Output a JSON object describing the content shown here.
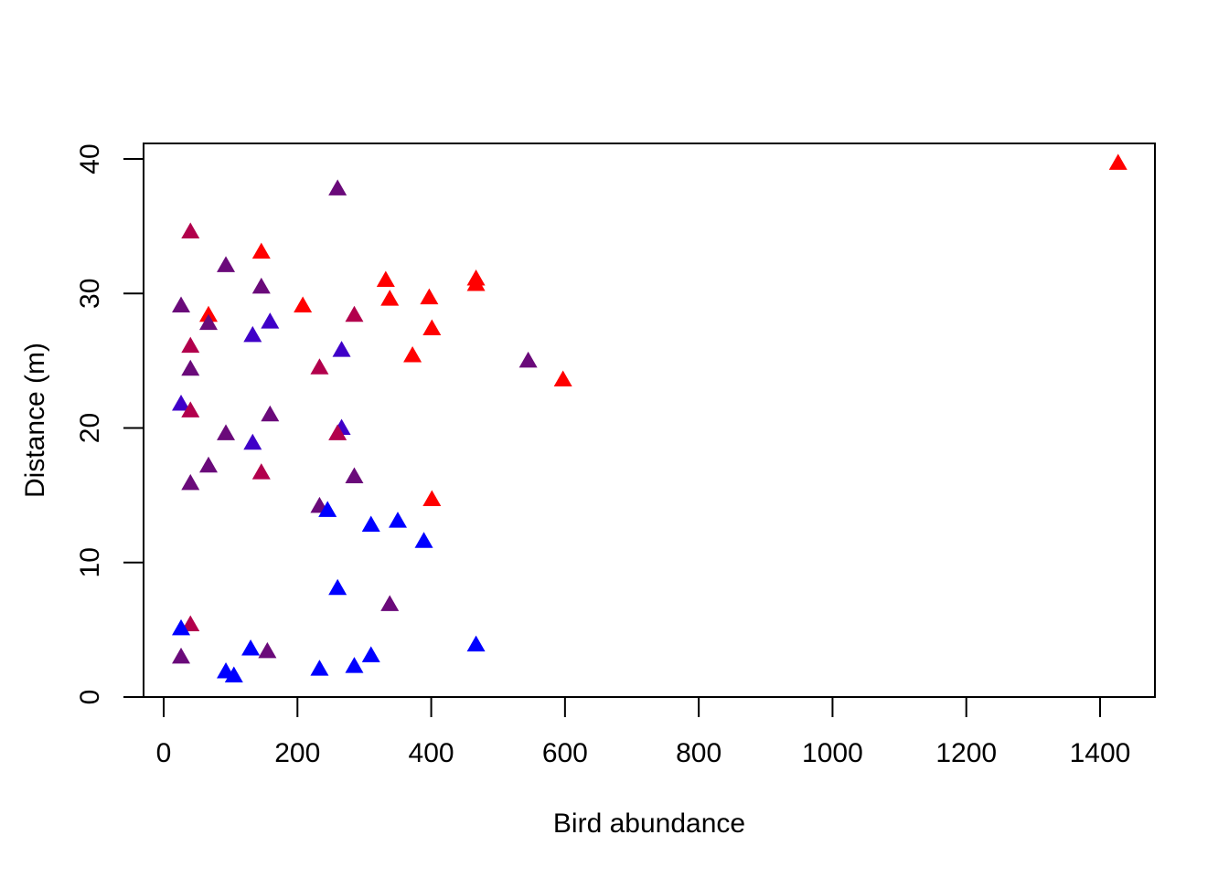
{
  "chart_data": {
    "type": "scatter",
    "title": "",
    "xlabel": "Bird abundance",
    "ylabel": "Distance (m)",
    "xlim": [
      -30,
      1480
    ],
    "ylim": [
      -1,
      40.2
    ],
    "x_ticks": [
      0,
      200,
      400,
      600,
      800,
      1000,
      1200,
      1400
    ],
    "x_tick_labels": [
      "0",
      "200",
      "400",
      "600",
      "800",
      "1000",
      "1200",
      "1400"
    ],
    "y_ticks": [
      0,
      10,
      20,
      30,
      40
    ],
    "y_tick_labels": [
      "0",
      "10",
      "20",
      "30",
      "40"
    ],
    "marker": "filled-triangle",
    "grid": false,
    "legend": "none",
    "colors": {
      "red": "#ff0000",
      "crimson": "#b2004c",
      "purple": "#6a0a7a",
      "indigo": "#3f00c8",
      "blue": "#0000ff"
    },
    "points": [
      {
        "x": 1427,
        "y": 39.7,
        "color": "red"
      },
      {
        "x": 260,
        "y": 37.8,
        "color": "purple"
      },
      {
        "x": 40,
        "y": 34.6,
        "color": "crimson"
      },
      {
        "x": 146,
        "y": 33.1,
        "color": "red"
      },
      {
        "x": 93,
        "y": 32.1,
        "color": "purple"
      },
      {
        "x": 332,
        "y": 31.0,
        "color": "red"
      },
      {
        "x": 467,
        "y": 31.1,
        "color": "red"
      },
      {
        "x": 467,
        "y": 30.7,
        "color": "red"
      },
      {
        "x": 146,
        "y": 30.5,
        "color": "purple"
      },
      {
        "x": 397,
        "y": 29.7,
        "color": "red"
      },
      {
        "x": 338,
        "y": 29.6,
        "color": "red"
      },
      {
        "x": 26,
        "y": 29.1,
        "color": "purple"
      },
      {
        "x": 208,
        "y": 29.1,
        "color": "red"
      },
      {
        "x": 285,
        "y": 28.4,
        "color": "crimson"
      },
      {
        "x": 67,
        "y": 28.4,
        "color": "red"
      },
      {
        "x": 67,
        "y": 27.8,
        "color": "purple"
      },
      {
        "x": 159,
        "y": 27.9,
        "color": "indigo"
      },
      {
        "x": 401,
        "y": 27.4,
        "color": "red"
      },
      {
        "x": 133,
        "y": 26.9,
        "color": "indigo"
      },
      {
        "x": 40,
        "y": 26.1,
        "color": "crimson"
      },
      {
        "x": 266,
        "y": 25.8,
        "color": "indigo"
      },
      {
        "x": 372,
        "y": 25.4,
        "color": "red"
      },
      {
        "x": 545,
        "y": 25.0,
        "color": "purple"
      },
      {
        "x": 40,
        "y": 24.4,
        "color": "purple"
      },
      {
        "x": 233,
        "y": 24.5,
        "color": "crimson"
      },
      {
        "x": 597,
        "y": 23.6,
        "color": "red"
      },
      {
        "x": 26,
        "y": 21.8,
        "color": "indigo"
      },
      {
        "x": 40,
        "y": 21.3,
        "color": "crimson"
      },
      {
        "x": 159,
        "y": 21.0,
        "color": "purple"
      },
      {
        "x": 266,
        "y": 20.0,
        "color": "indigo"
      },
      {
        "x": 93,
        "y": 19.6,
        "color": "purple"
      },
      {
        "x": 260,
        "y": 19.6,
        "color": "crimson"
      },
      {
        "x": 133,
        "y": 18.9,
        "color": "indigo"
      },
      {
        "x": 67,
        "y": 17.2,
        "color": "purple"
      },
      {
        "x": 146,
        "y": 16.7,
        "color": "crimson"
      },
      {
        "x": 285,
        "y": 16.4,
        "color": "purple"
      },
      {
        "x": 40,
        "y": 15.9,
        "color": "purple"
      },
      {
        "x": 401,
        "y": 14.7,
        "color": "red"
      },
      {
        "x": 233,
        "y": 14.2,
        "color": "purple"
      },
      {
        "x": 245,
        "y": 13.9,
        "color": "blue"
      },
      {
        "x": 350,
        "y": 13.1,
        "color": "blue"
      },
      {
        "x": 310,
        "y": 12.8,
        "color": "blue"
      },
      {
        "x": 389,
        "y": 11.6,
        "color": "blue"
      },
      {
        "x": 260,
        "y": 8.1,
        "color": "blue"
      },
      {
        "x": 338,
        "y": 6.9,
        "color": "purple"
      },
      {
        "x": 40,
        "y": 5.4,
        "color": "crimson"
      },
      {
        "x": 26,
        "y": 5.1,
        "color": "blue"
      },
      {
        "x": 467,
        "y": 3.9,
        "color": "blue"
      },
      {
        "x": 130,
        "y": 3.6,
        "color": "blue"
      },
      {
        "x": 155,
        "y": 3.4,
        "color": "purple"
      },
      {
        "x": 310,
        "y": 3.1,
        "color": "blue"
      },
      {
        "x": 26,
        "y": 3.0,
        "color": "purple"
      },
      {
        "x": 285,
        "y": 2.3,
        "color": "blue"
      },
      {
        "x": 233,
        "y": 2.1,
        "color": "blue"
      },
      {
        "x": 93,
        "y": 1.9,
        "color": "blue"
      },
      {
        "x": 105,
        "y": 1.6,
        "color": "blue"
      }
    ]
  }
}
